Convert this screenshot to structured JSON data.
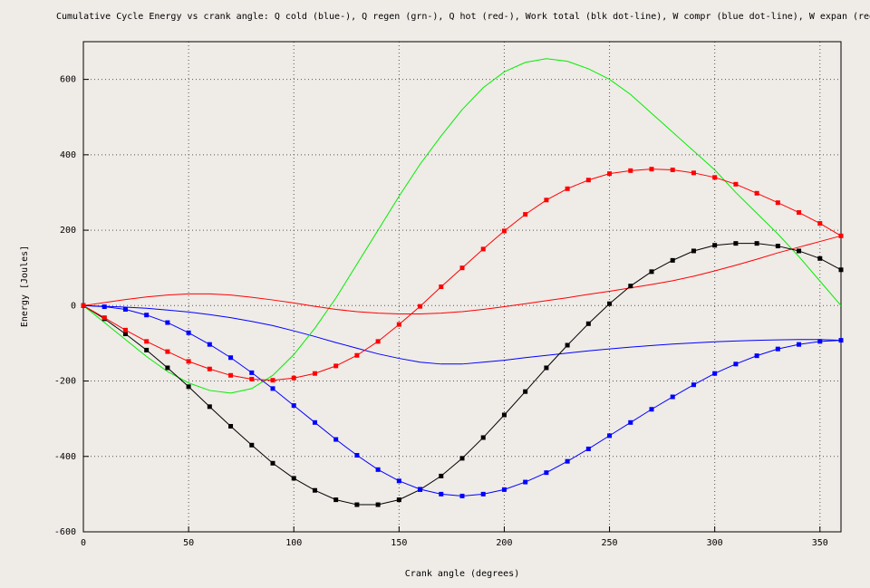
{
  "chart_data": {
    "type": "line",
    "title": "Cumulative Cycle Energy vs crank angle: Q cold (blue-), Q regen (grn-), Q hot (red-), Work total (blk dot-line), W compr (blue dot-line), W expan (red dot-line)",
    "xlabel": "Crank angle (degrees)",
    "ylabel": "Energy [Joules]",
    "x": [
      0,
      10,
      20,
      30,
      40,
      50,
      60,
      70,
      80,
      90,
      100,
      110,
      120,
      130,
      140,
      150,
      160,
      170,
      180,
      190,
      200,
      210,
      220,
      230,
      240,
      250,
      260,
      270,
      280,
      290,
      300,
      310,
      320,
      330,
      340,
      350,
      360
    ],
    "xlim": [
      0,
      360
    ],
    "xticks": [
      0,
      50,
      100,
      150,
      200,
      250,
      300,
      350
    ],
    "ylim": [
      -600,
      700
    ],
    "yticks": [
      -600,
      -400,
      -200,
      0,
      200,
      400,
      600
    ],
    "grid": true,
    "series": [
      {
        "name": "Q cold",
        "color": "#0000ff",
        "markers": false,
        "values": [
          0,
          -2,
          -4,
          -7,
          -12,
          -17,
          -24,
          -32,
          -42,
          -53,
          -67,
          -82,
          -98,
          -113,
          -128,
          -140,
          -150,
          -155,
          -155,
          -150,
          -145,
          -138,
          -132,
          -126,
          -120,
          -115,
          -110,
          -106,
          -102,
          -99,
          -96,
          -94,
          -92,
          -91,
          -90,
          -90,
          -92
        ]
      },
      {
        "name": "Q regen",
        "color": "#00ee00",
        "markers": false,
        "values": [
          0,
          -45,
          -90,
          -135,
          -175,
          -205,
          -225,
          -232,
          -220,
          -185,
          -130,
          -60,
          20,
          110,
          200,
          290,
          375,
          450,
          520,
          578,
          620,
          645,
          655,
          648,
          628,
          600,
          560,
          510,
          460,
          410,
          360,
          300,
          245,
          190,
          130,
          65,
          0
        ]
      },
      {
        "name": "Q hot",
        "color": "#ff0000",
        "markers": false,
        "values": [
          0,
          8,
          16,
          23,
          28,
          31,
          31,
          28,
          22,
          15,
          7,
          -2,
          -10,
          -16,
          -20,
          -22,
          -22,
          -20,
          -16,
          -10,
          -3,
          5,
          13,
          21,
          30,
          38,
          47,
          56,
          66,
          78,
          92,
          107,
          123,
          140,
          155,
          170,
          185
        ]
      },
      {
        "name": "Work total",
        "color": "#000000",
        "markers": true,
        "values": [
          0,
          -35,
          -75,
          -118,
          -165,
          -215,
          -268,
          -320,
          -370,
          -418,
          -458,
          -490,
          -515,
          -528,
          -528,
          -515,
          -488,
          -452,
          -405,
          -350,
          -290,
          -228,
          -165,
          -105,
          -48,
          5,
          52,
          90,
          120,
          145,
          160,
          165,
          165,
          158,
          145,
          125,
          95
        ]
      },
      {
        "name": "W compr",
        "color": "#0000ff",
        "markers": true,
        "values": [
          0,
          -3,
          -10,
          -25,
          -45,
          -72,
          -103,
          -138,
          -178,
          -220,
          -265,
          -310,
          -355,
          -397,
          -435,
          -465,
          -487,
          -500,
          -505,
          -500,
          -488,
          -468,
          -443,
          -413,
          -380,
          -345,
          -310,
          -275,
          -242,
          -210,
          -180,
          -155,
          -133,
          -115,
          -103,
          -95,
          -92
        ]
      },
      {
        "name": "W expan",
        "color": "#ff0000",
        "markers": true,
        "values": [
          0,
          -32,
          -65,
          -95,
          -122,
          -148,
          -168,
          -185,
          -195,
          -198,
          -192,
          -180,
          -160,
          -132,
          -95,
          -50,
          -2,
          50,
          100,
          150,
          198,
          242,
          280,
          310,
          333,
          350,
          358,
          362,
          360,
          352,
          340,
          322,
          298,
          273,
          247,
          218,
          185
        ]
      }
    ]
  }
}
